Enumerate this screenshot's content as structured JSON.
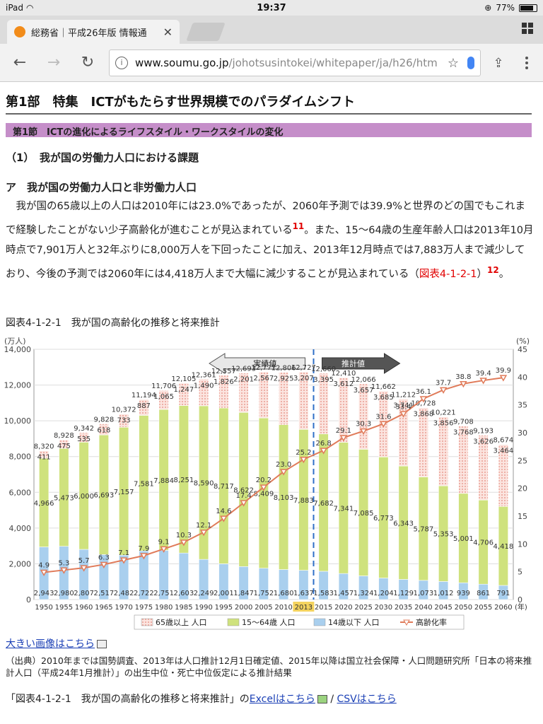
{
  "status": {
    "device": "iPad",
    "time": "19:37",
    "battery": "77%",
    "battery_level": 0.77
  },
  "tab": {
    "title": "総務省｜平成26年版 情報通"
  },
  "url": {
    "host": "www.soumu.go.jp",
    "path": "/johotsusintokei/whitepaper/ja/h26/htm"
  },
  "page": {
    "part_title": "第1部　特集　ICTがもたらす世界規模でのパラダイムシフト",
    "section_title": "第1節　ICTの進化によるライフスタイル・ワークスタイルの変化",
    "sub1": "（1）　我が国の労働力人口における課題",
    "sub2": "ア　我が国の労働力人口と非労働力人口",
    "para_1": "　我が国の65歳以上の人口は2010年には23.0%であったが、2060年予測では39.9%と世界のどの国でもこれまで経験したことがない少子高齢化が進むことが見込まれている",
    "fn1": "11",
    "para_2": "。また、15〜64歳の生産年齢人口は2013年10月時点で7,901万人と32年ぶりに8,000万人を下回ったことに加え、2013年12月時点では7,883万人まで減少しており、今後の予測では2060年には4,418万人まで大幅に減少することが見込まれている（",
    "para_ref": "図表4-1-2-1",
    "para_3": "）",
    "fn2": "12",
    "para_4": "。",
    "figure_title": "図表4-1-2-1　我が国の高齢化の推移と将来推計",
    "big_image_link": "大きい画像はこちら",
    "source_note": "（出典）2010年までは国勢調査、2013年は人口推計12月1日確定値、2015年以降は国立社会保障・人口問題研究所「日本の将来推計人口（平成24年1月推計）」の出生中位・死亡中位仮定による推計結果",
    "download_prefix": "「図表4-1-2-1　我が国の高齢化の推移と将来推計」の",
    "excel_link": "Excelはこちら",
    "separator": " / ",
    "csv_link": "CSVはこちら"
  },
  "chart_data": {
    "type": "bar",
    "left_axis_unit": "(万人)",
    "right_axis_unit": "(%)",
    "left_ylim": [
      0,
      14000
    ],
    "left_ticks": [
      "0",
      "2,000",
      "4,000",
      "6,000",
      "8,000",
      "10,000",
      "12,000",
      "14,000"
    ],
    "right_ylim": [
      0,
      45
    ],
    "right_ticks": [
      "0",
      "5",
      "10",
      "15",
      "20",
      "25",
      "30",
      "35",
      "40",
      "45"
    ],
    "arrow_actual": "実績値",
    "arrow_projected": "推計値",
    "x_suffix": "(年)",
    "highlight_year": "2013",
    "categories": [
      "1950",
      "1955",
      "1960",
      "1965",
      "1970",
      "1975",
      "1980",
      "1985",
      "1990",
      "1995",
      "2000",
      "2005",
      "2010",
      "2013",
      "2015",
      "2020",
      "2025",
      "2030",
      "2035",
      "2040",
      "2045",
      "2050",
      "2055",
      "2060"
    ],
    "series": [
      {
        "name": "14歳以下 人口",
        "color": "#a9cfee",
        "values": [
          2943,
          2980,
          2807,
          2517,
          2482,
          2722,
          2751,
          2603,
          2249,
          2001,
          1847,
          1752,
          1680,
          1637,
          1583,
          1457,
          1324,
          1204,
          1129,
          1073,
          1012,
          939,
          861,
          791
        ],
        "labels": [
          "2,943",
          "2,980",
          "2,807",
          "2,517",
          "2,482",
          "2,722",
          "2,751",
          "2,603",
          "2,249",
          "2,001",
          "1,847",
          "1,752",
          "1,680",
          "1,637",
          "1,583",
          "1,457",
          "1,324",
          "1,204",
          "1,129",
          "1,073",
          "1,012",
          "939",
          "861",
          "791"
        ]
      },
      {
        "name": "15～64歳 人口",
        "color": "#cfe27d",
        "values": [
          4966,
          5473,
          6000,
          6693,
          7157,
          7581,
          7884,
          8251,
          8590,
          8717,
          8622,
          8409,
          8103,
          7883,
          7682,
          7341,
          7085,
          6773,
          6343,
          5787,
          5353,
          5001,
          4706,
          4418
        ],
        "labels": [
          "4,966",
          "5,473",
          "6,000",
          "6,693",
          "7,157",
          "7,581",
          "7,884",
          "8,251",
          "8,590",
          "8,717",
          "8,622",
          "8,409",
          "8,103",
          "7,883",
          "7,682",
          "7,341",
          "7,085",
          "6,773",
          "6,343",
          "5,787",
          "5,353",
          "5,001",
          "4,706",
          "4,418"
        ]
      },
      {
        "name": "65歳以上 人口",
        "color": "#f6b9b0",
        "values": [
          411,
          475,
          535,
          618,
          733,
          887,
          1065,
          1247,
          1490,
          1826,
          2201,
          2567,
          2925,
          3207,
          3395,
          3612,
          3657,
          3685,
          3741,
          3868,
          3856,
          3768,
          3626,
          3464
        ],
        "labels": [
          "411",
          "475",
          "535",
          "618",
          "733",
          "887",
          "1,065",
          "1,247",
          "1,490",
          "1,826",
          "2,201",
          "2,567",
          "2,925",
          "3,207",
          "3,395",
          "3,612",
          "3,657",
          "3,685",
          "3,741",
          "3,868",
          "3,856",
          "3,768",
          "3,626",
          "3,464"
        ]
      }
    ],
    "totals": [
      "8,320",
      "8,928",
      "9,342",
      "9,828",
      "10,372",
      "11,194",
      "11,706",
      "12,105",
      "12,361",
      "12,557",
      "12,693",
      "12,777",
      "12,806",
      "12,727",
      "12,660",
      "12,410",
      "12,066",
      "11,662",
      "11,212",
      "10,728",
      "10,221",
      "9,708",
      "9,193",
      "8,674"
    ],
    "rate": {
      "name": "高齢化率",
      "color": "#e07b5a",
      "values": [
        4.9,
        5.3,
        5.7,
        6.3,
        7.1,
        7.9,
        9.1,
        10.3,
        12.1,
        14.6,
        17.4,
        20.2,
        23.0,
        25.2,
        26.8,
        29.1,
        30.3,
        31.6,
        33.4,
        36.1,
        37.7,
        38.8,
        39.4,
        39.9
      ],
      "labels": [
        "4.9",
        "5.3",
        "5.7",
        "6.3",
        "7.1",
        "7.9",
        "9.1",
        "10.3",
        "12.1",
        "14.6",
        "17.4",
        "20.2",
        "23.0",
        "25.2",
        "26.8",
        "29.1",
        "30.3",
        "31.6",
        "33.4",
        "36.1",
        "37.7",
        "38.8",
        "39.4",
        "39.9"
      ]
    }
  }
}
